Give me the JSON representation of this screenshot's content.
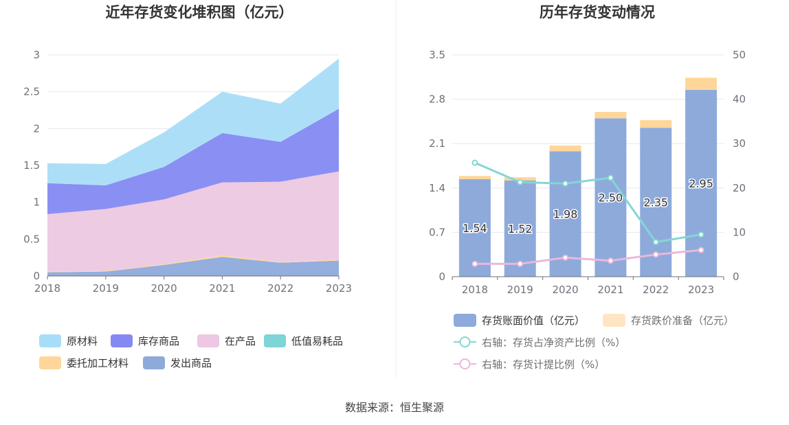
{
  "source": "数据来源：恒生聚源",
  "chart_data": [
    {
      "type": "area",
      "stacked": true,
      "title": "近年存货变化堆积图（亿元）",
      "categories": [
        "2018",
        "2019",
        "2020",
        "2021",
        "2022",
        "2023"
      ],
      "ylim": [
        0,
        3
      ],
      "yticks": [
        "0",
        "0.5",
        "1",
        "1.5",
        "2",
        "2.5",
        "3"
      ],
      "legend_position": "bottom",
      "series": [
        {
          "name": "发出商品",
          "color": "#8eaadb",
          "values": [
            0.05,
            0.06,
            0.15,
            0.26,
            0.18,
            0.21
          ]
        },
        {
          "name": "委托加工材料",
          "color": "#ffd699",
          "values": [
            0.01,
            0.01,
            0.01,
            0.02,
            0.01,
            0.01
          ]
        },
        {
          "name": "低值易耗品",
          "color": "#7dd5d5",
          "values": [
            0.0,
            0.0,
            0.0,
            0.0,
            0.0,
            0.0
          ]
        },
        {
          "name": "在产品",
          "color": "#ecc8e2",
          "values": [
            0.78,
            0.84,
            0.88,
            0.99,
            1.09,
            1.2
          ]
        },
        {
          "name": "库存商品",
          "color": "#8489f2",
          "values": [
            0.42,
            0.32,
            0.44,
            0.67,
            0.54,
            0.85
          ]
        },
        {
          "name": "原材料",
          "color": "#a8ddf7",
          "values": [
            0.27,
            0.29,
            0.47,
            0.56,
            0.52,
            0.68
          ]
        }
      ],
      "legend_order": [
        "原材料",
        "库存商品",
        "在产品",
        "低值易耗品",
        "委托加工材料",
        "发出商品"
      ]
    },
    {
      "type": "bar",
      "stacked": true,
      "title": "历年存货变动情况",
      "categories": [
        "2018",
        "2019",
        "2020",
        "2021",
        "2022",
        "2023"
      ],
      "ylim": [
        0,
        3.5
      ],
      "yticks": [
        "0",
        "0.7",
        "1.4",
        "2.1",
        "2.8",
        "3.5"
      ],
      "y2lim": [
        0,
        50
      ],
      "y2ticks": [
        "0",
        "10",
        "20",
        "30",
        "40",
        "50"
      ],
      "legend_position": "bottom",
      "series": [
        {
          "name": "存货账面价值（亿元）",
          "color": "#8eaadb",
          "values": [
            1.54,
            1.52,
            1.98,
            2.5,
            2.35,
            2.95
          ],
          "labels": [
            "1.54",
            "1.52",
            "1.98",
            "2.50",
            "2.35",
            "2.95"
          ]
        },
        {
          "name": "存货跌价准备（亿元）",
          "color": "#ffd699",
          "values": [
            0.05,
            0.05,
            0.09,
            0.1,
            0.12,
            0.19
          ]
        }
      ],
      "line_series": [
        {
          "name": "右轴：存货占净资产比例（%）",
          "color": "#84d6d3",
          "axis": "right",
          "values": [
            25.7,
            21.3,
            21.0,
            22.3,
            7.8,
            9.5
          ]
        },
        {
          "name": "右轴：存货计提比例（%）",
          "color": "#eab8da",
          "axis": "right",
          "values": [
            2.9,
            2.9,
            4.3,
            3.6,
            5.0,
            6.0
          ]
        }
      ]
    }
  ]
}
